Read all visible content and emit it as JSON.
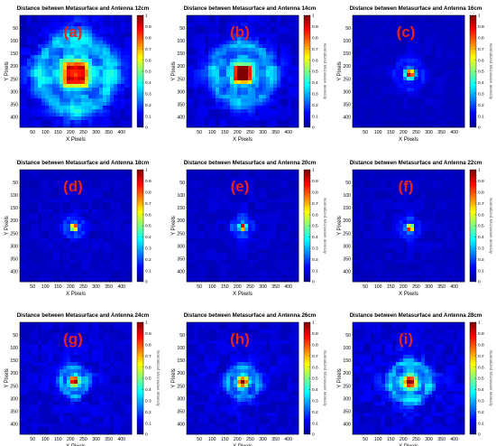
{
  "figure": {
    "panel_count": 9,
    "colormap": "jet",
    "colormap_stops": [
      "#00008f",
      "#0000ff",
      "#007fff",
      "#00ffff",
      "#7fff7f",
      "#ffff00",
      "#ff7f00",
      "#ff0000",
      "#7f0000"
    ],
    "panel_label_color": "#e8221f",
    "axis_frame_color": "#000000"
  },
  "chart_data": [
    {
      "type": "heatmap",
      "title": "Distance between Metasurface and Antenna 12cm",
      "panel_label": "(a)",
      "xlabel": "X Pixels",
      "ylabel": "Y Pixels",
      "colorbar_label": "",
      "xlim": [
        0,
        440
      ],
      "ylim": [
        440,
        0
      ],
      "xticks": [
        50,
        100,
        150,
        200,
        250,
        300,
        350,
        400
      ],
      "yticks": [
        50,
        100,
        150,
        200,
        250,
        300,
        350,
        400
      ],
      "colorbar_ticks": [
        0,
        0.1,
        0.2,
        0.3,
        0.4,
        0.5,
        0.6,
        0.7,
        0.8,
        0.9,
        1
      ],
      "clim": [
        0,
        1
      ],
      "spot_center": [
        220,
        230
      ],
      "spot_radius": 55,
      "spot_shape": "square-ring",
      "sidelobe_level": 0.35
    },
    {
      "type": "heatmap",
      "title": "Distance between Metasurface and Antenna 14cm",
      "panel_label": "(b)",
      "xlabel": "X Pixels",
      "ylabel": "Y Pixels",
      "colorbar_label": "Normalized Microwave Intensity",
      "xlim": [
        0,
        440
      ],
      "ylim": [
        440,
        0
      ],
      "xticks": [
        50,
        100,
        150,
        200,
        250,
        300,
        350,
        400
      ],
      "yticks": [
        50,
        100,
        150,
        200,
        250,
        300,
        350,
        400
      ],
      "colorbar_ticks": [
        0,
        0.1,
        0.2,
        0.3,
        0.4,
        0.5,
        0.6,
        0.7,
        0.8,
        0.9,
        1
      ],
      "clim": [
        0,
        1
      ],
      "spot_center": [
        220,
        230
      ],
      "spot_radius": 45,
      "spot_shape": "square",
      "sidelobe_level": 0.3
    },
    {
      "type": "heatmap",
      "title": "Distance between Metasurface and Antenna 16cm",
      "panel_label": "(c)",
      "xlabel": "X Pixels",
      "ylabel": "Y Pixels",
      "colorbar_label": "Normalized Microwave Intensity",
      "xlim": [
        0,
        440
      ],
      "ylim": [
        440,
        0
      ],
      "xticks": [
        50,
        100,
        150,
        200,
        250,
        300,
        350,
        400
      ],
      "yticks": [
        50,
        100,
        150,
        200,
        250,
        300,
        350,
        400
      ],
      "colorbar_ticks": [
        0,
        0.1,
        0.2,
        0.3,
        0.4,
        0.5,
        0.6,
        0.7,
        0.8,
        0.9,
        1
      ],
      "clim": [
        0,
        1
      ],
      "spot_center": [
        225,
        230
      ],
      "spot_radius": 22,
      "spot_shape": "round",
      "sidelobe_level": 0.12
    },
    {
      "type": "heatmap",
      "title": "Distance between Metasurface and Antenna 18cm",
      "panel_label": "(d)",
      "xlabel": "X Pixels",
      "ylabel": "Y Pixels",
      "colorbar_label": "",
      "xlim": [
        0,
        440
      ],
      "ylim": [
        440,
        0
      ],
      "xticks": [
        50,
        100,
        150,
        200,
        250,
        300,
        350,
        400
      ],
      "yticks": [
        50,
        100,
        150,
        200,
        250,
        300,
        350,
        400
      ],
      "colorbar_ticks": [
        0,
        0.1,
        0.2,
        0.3,
        0.4,
        0.5,
        0.6,
        0.7,
        0.8,
        0.9,
        1
      ],
      "clim": [
        0,
        1
      ],
      "spot_center": [
        215,
        225
      ],
      "spot_radius": 16,
      "spot_shape": "cross",
      "sidelobe_level": 0.15
    },
    {
      "type": "heatmap",
      "title": "Distance between Metasurface and Antenna 20cm",
      "panel_label": "(e)",
      "xlabel": "X Pixels",
      "ylabel": "Y Pixels",
      "colorbar_label": "Normalized Microwave Intensity",
      "xlim": [
        0,
        440
      ],
      "ylim": [
        440,
        0
      ],
      "xticks": [
        50,
        100,
        150,
        200,
        250,
        300,
        350,
        400
      ],
      "yticks": [
        50,
        100,
        150,
        200,
        250,
        300,
        350,
        400
      ],
      "colorbar_ticks": [
        0,
        0.1,
        0.2,
        0.3,
        0.4,
        0.5,
        0.6,
        0.7,
        0.8,
        0.9,
        1
      ],
      "clim": [
        0,
        1
      ],
      "spot_center": [
        220,
        225
      ],
      "spot_radius": 16,
      "spot_shape": "cross",
      "sidelobe_level": 0.15
    },
    {
      "type": "heatmap",
      "title": "Distance between Metasurface and Antenna 22cm",
      "panel_label": "(f)",
      "xlabel": "X Pixels",
      "ylabel": "Y Pixels",
      "colorbar_label": "Normalized Microwave Intensity",
      "xlim": [
        0,
        440
      ],
      "ylim": [
        440,
        0
      ],
      "xticks": [
        50,
        100,
        150,
        200,
        250,
        300,
        350,
        400
      ],
      "yticks": [
        50,
        100,
        150,
        200,
        250,
        300,
        350,
        400
      ],
      "colorbar_ticks": [
        0,
        0.1,
        0.2,
        0.3,
        0.4,
        0.5,
        0.6,
        0.7,
        0.8,
        0.9,
        1
      ],
      "clim": [
        0,
        1
      ],
      "spot_center": [
        225,
        230
      ],
      "spot_radius": 16,
      "spot_shape": "cross",
      "sidelobe_level": 0.13
    },
    {
      "type": "heatmap",
      "title": "Distance between Metasurface and Antenna 24cm",
      "panel_label": "(g)",
      "xlabel": "X Pixels",
      "ylabel": "Y Pixels",
      "colorbar_label": "Normalized Microwave Intensity",
      "xlim": [
        0,
        440
      ],
      "ylim": [
        440,
        0
      ],
      "xticks": [
        50,
        100,
        150,
        200,
        250,
        300,
        350,
        400
      ],
      "yticks": [
        50,
        100,
        150,
        200,
        250,
        300,
        350,
        400
      ],
      "colorbar_ticks": [
        0,
        0.1,
        0.2,
        0.3,
        0.4,
        0.5,
        0.6,
        0.7,
        0.8,
        0.9,
        1
      ],
      "clim": [
        0,
        1
      ],
      "spot_center": [
        215,
        230
      ],
      "spot_radius": 22,
      "spot_shape": "cross",
      "sidelobe_level": 0.25
    },
    {
      "type": "heatmap",
      "title": "Distance between Metasurface and Antenna 26cm",
      "panel_label": "(h)",
      "xlabel": "X Pixels",
      "ylabel": "Y Pixels",
      "colorbar_label": "Normalized Microwave Intensity",
      "xlim": [
        0,
        440
      ],
      "ylim": [
        440,
        0
      ],
      "xticks": [
        50,
        100,
        150,
        200,
        250,
        300,
        350,
        400
      ],
      "yticks": [
        50,
        100,
        150,
        200,
        250,
        300,
        350,
        400
      ],
      "colorbar_ticks": [
        0,
        0.1,
        0.2,
        0.3,
        0.4,
        0.5,
        0.6,
        0.7,
        0.8,
        0.9,
        1
      ],
      "clim": [
        0,
        1
      ],
      "spot_center": [
        220,
        235
      ],
      "spot_radius": 24,
      "spot_shape": "cross",
      "sidelobe_level": 0.25
    },
    {
      "type": "heatmap",
      "title": "Distance between Metasurface and Antenna 28cm",
      "panel_label": "(i)",
      "xlabel": "X Pixels",
      "ylabel": "Y Pixels",
      "colorbar_label": "Normalized Microwave Intensity",
      "xlim": [
        0,
        440
      ],
      "ylim": [
        440,
        0
      ],
      "xticks": [
        50,
        100,
        150,
        200,
        250,
        300,
        350,
        400
      ],
      "yticks": [
        50,
        100,
        150,
        200,
        250,
        300,
        350,
        400
      ],
      "colorbar_ticks": [
        0,
        0.1,
        0.2,
        0.3,
        0.4,
        0.5,
        0.6,
        0.7,
        0.8,
        0.9,
        1
      ],
      "clim": [
        0,
        1
      ],
      "spot_center": [
        225,
        235
      ],
      "spot_radius": 30,
      "spot_shape": "cross",
      "sidelobe_level": 0.3
    }
  ]
}
